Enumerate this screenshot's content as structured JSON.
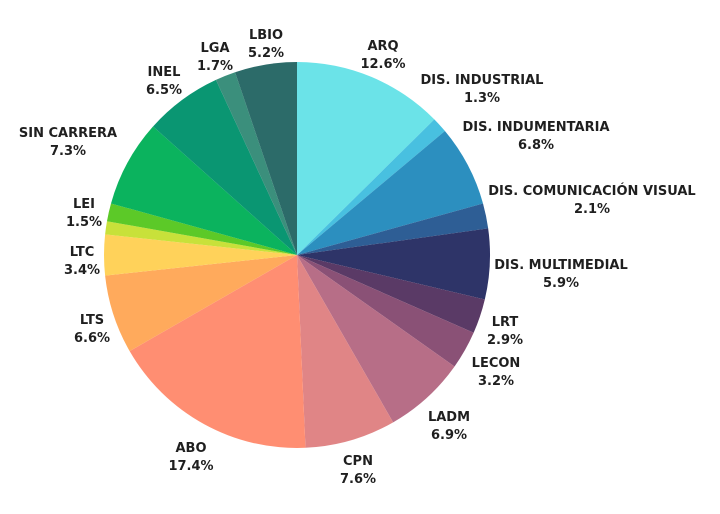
{
  "chart_data": {
    "type": "pie",
    "slices": [
      {
        "label": "ARQ",
        "pct_text": "12.6%",
        "value": 12.6,
        "color": "#6BE3E8"
      },
      {
        "label": "DIS. INDUSTRIAL",
        "pct_text": "1.3%",
        "value": 1.3,
        "color": "#48C0E0"
      },
      {
        "label": "DIS. INDUMENTARIA",
        "pct_text": "6.8%",
        "value": 6.8,
        "color": "#2C8FBF"
      },
      {
        "label": "DIS. COMUNICACIÓN VISUAL",
        "pct_text": "2.1%",
        "value": 2.1,
        "color": "#2E5E95"
      },
      {
        "label": "DIS. MULTIMEDIAL",
        "pct_text": "5.9%",
        "value": 5.9,
        "color": "#2E3468"
      },
      {
        "label": "LRT",
        "pct_text": "2.9%",
        "value": 2.9,
        "color": "#5A3A66"
      },
      {
        "label": "LECON",
        "pct_text": "3.2%",
        "value": 3.2,
        "color": "#8A5176"
      },
      {
        "label": "LADM",
        "pct_text": "6.9%",
        "value": 6.9,
        "color": "#B76E87"
      },
      {
        "label": "CPN",
        "pct_text": "7.6%",
        "value": 7.6,
        "color": "#E08586"
      },
      {
        "label": "ABO",
        "pct_text": "17.4%",
        "value": 17.4,
        "color": "#FF8E72"
      },
      {
        "label": "LTS",
        "pct_text": "6.6%",
        "value": 6.6,
        "color": "#FFAA5C"
      },
      {
        "label": "LTC",
        "pct_text": "3.4%",
        "value": 3.4,
        "color": "#FFD25A"
      },
      {
        "label": "",
        "pct_text": "",
        "value": 1.1,
        "color": "#C8E13A"
      },
      {
        "label": "LEI",
        "pct_text": "1.5%",
        "value": 1.5,
        "color": "#5CC928"
      },
      {
        "label": "SIN CARRERA",
        "pct_text": "7.3%",
        "value": 7.3,
        "color": "#0BB35E"
      },
      {
        "label": "INEL",
        "pct_text": "6.5%",
        "value": 6.5,
        "color": "#0A9672"
      },
      {
        "label": "LGA",
        "pct_text": "1.7%",
        "value": 1.7,
        "color": "#3B8F7C"
      },
      {
        "label": "LBIO",
        "pct_text": "5.2%",
        "value": 5.2,
        "color": "#2C6B69"
      }
    ]
  }
}
